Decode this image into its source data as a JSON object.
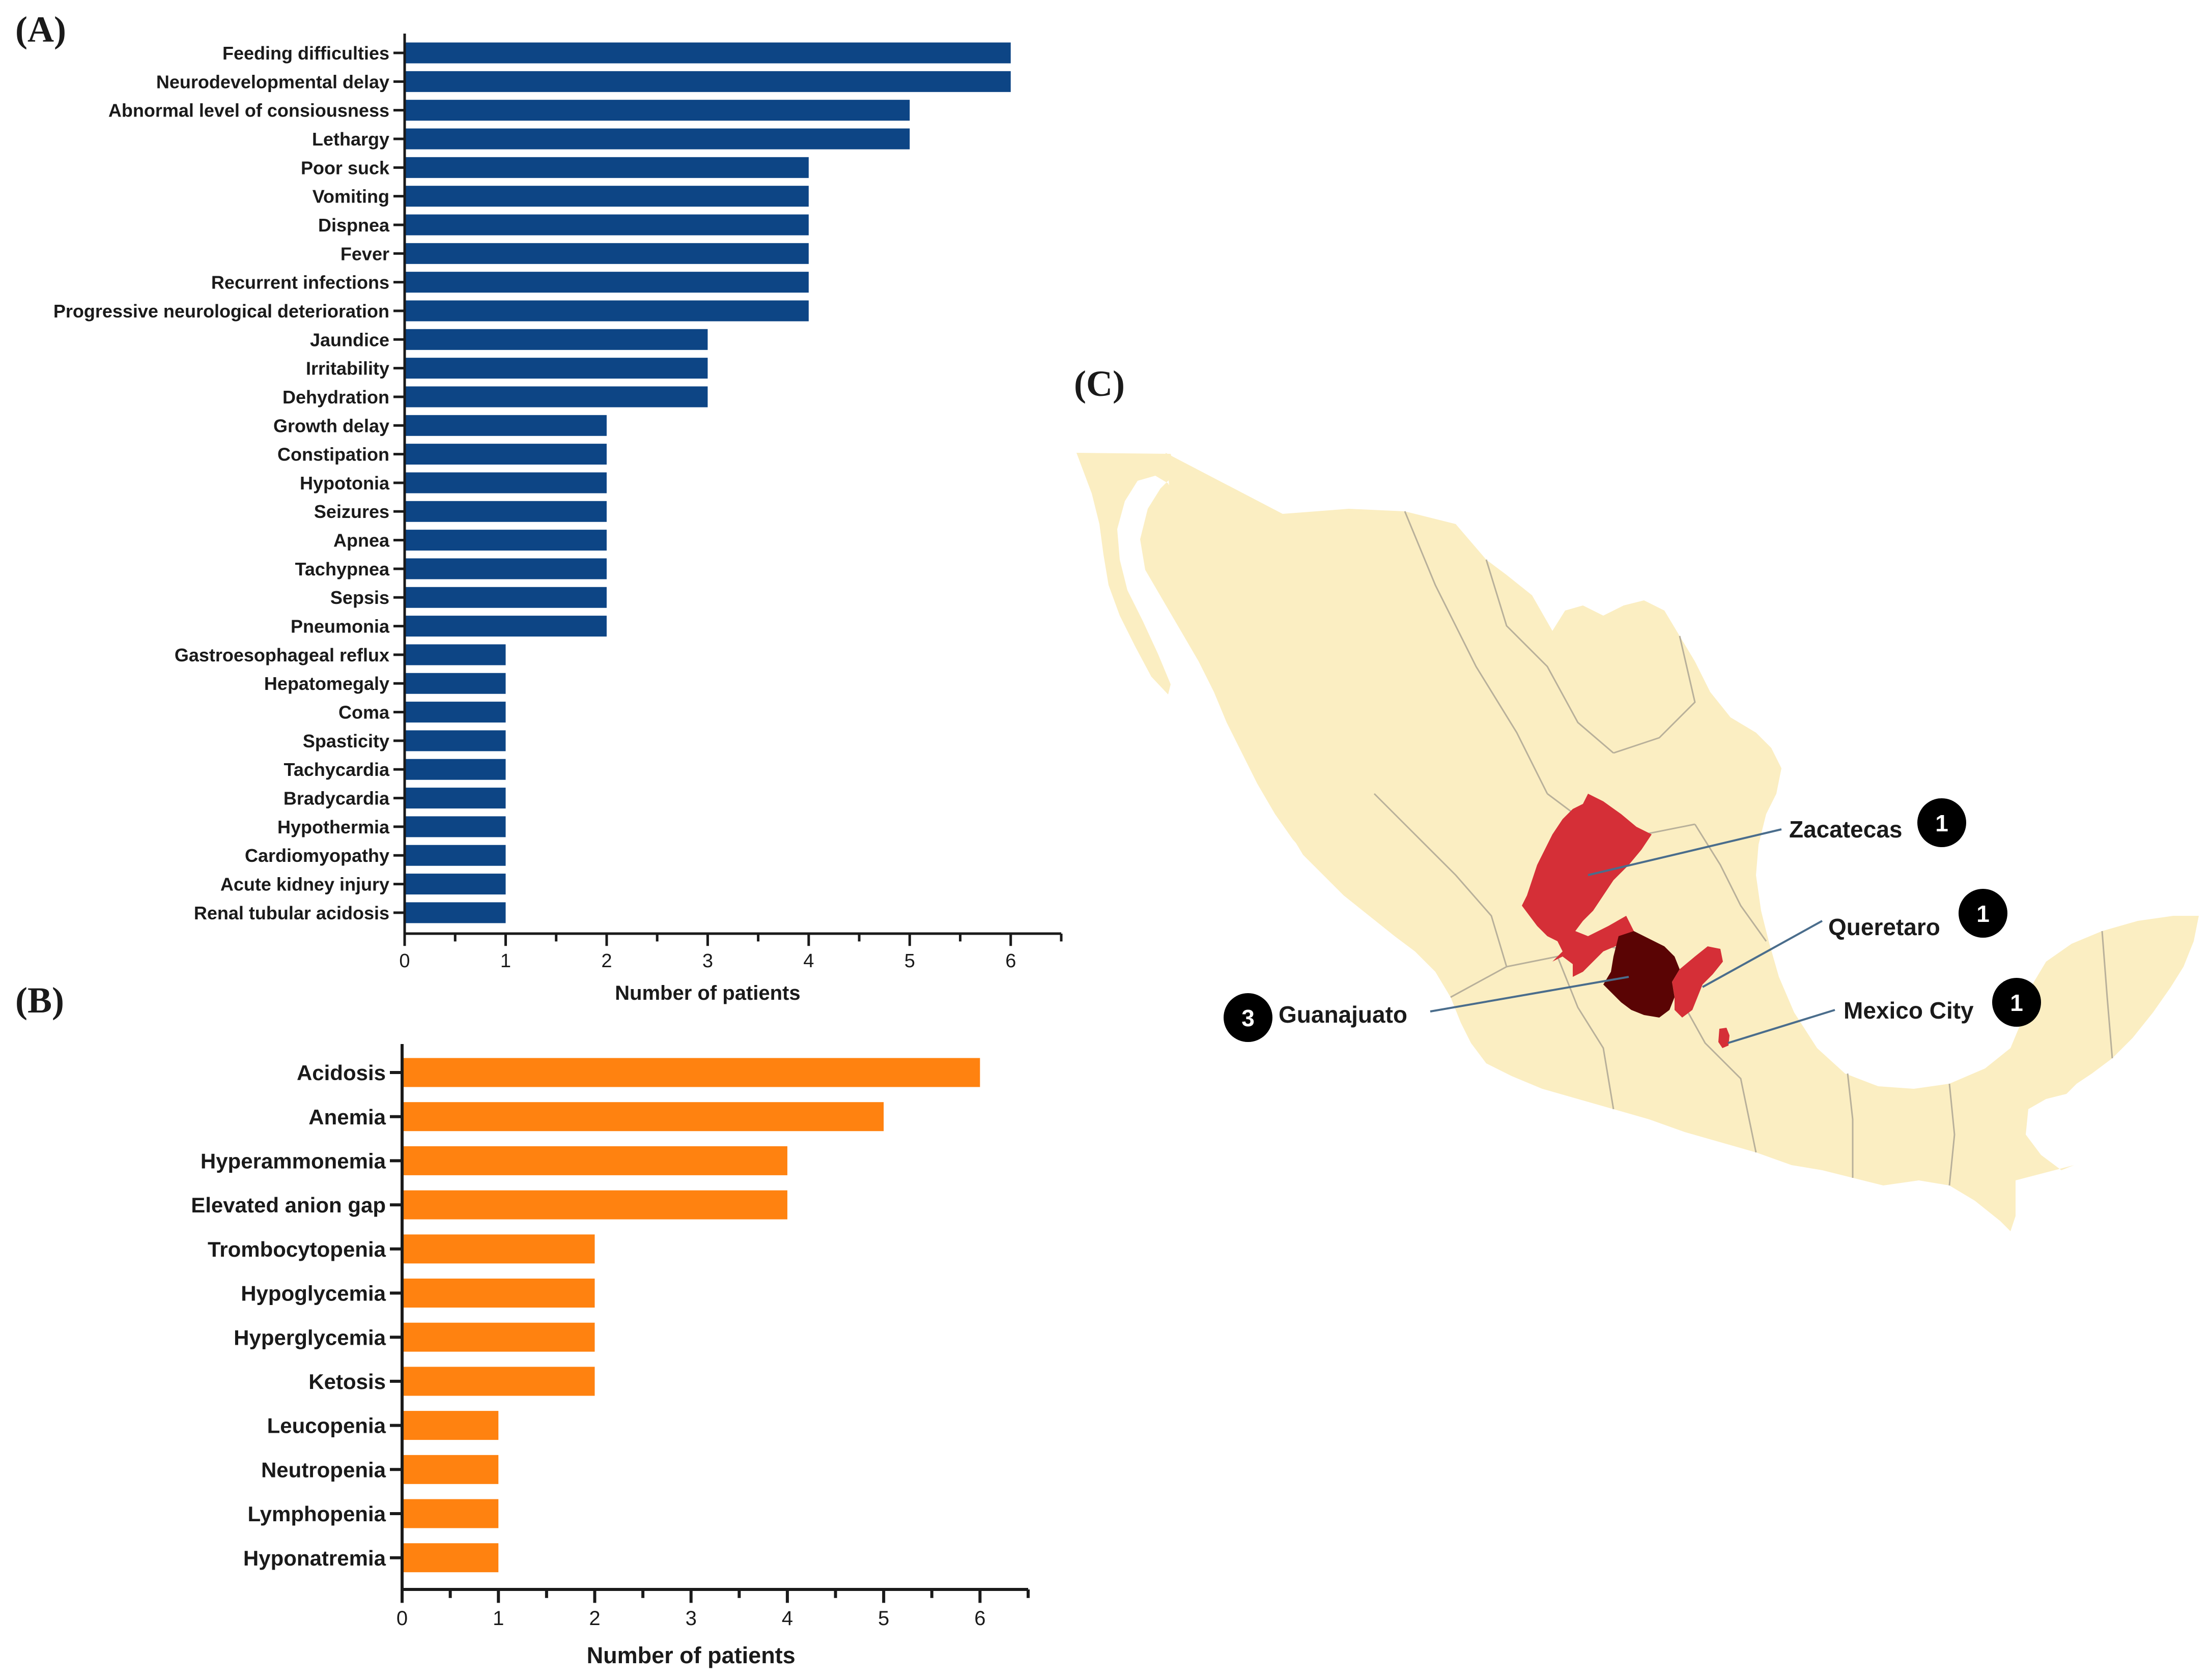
{
  "panels": {
    "a_letter": "(A)",
    "b_letter": "(B)",
    "c_letter": "(C)"
  },
  "chart_data": [
    {
      "type": "bar",
      "orientation": "horizontal",
      "panel": "A",
      "color": "#0d4585",
      "categories": [
        "Feeding difficulties",
        "Neurodevelopmental delay",
        "Abnormal level of consiousness",
        "Lethargy",
        "Poor suck",
        "Vomiting",
        "Dispnea",
        "Fever",
        "Recurrent infections",
        "Progressive neurological deterioration",
        "Jaundice",
        "Irritability",
        "Dehydration",
        "Growth delay",
        "Constipation",
        "Hypotonia",
        "Seizures",
        "Apnea",
        "Tachypnea",
        "Sepsis",
        "Pneumonia",
        "Gastroesophageal reflux",
        "Hepatomegaly",
        "Coma",
        "Spasticity",
        "Tachycardia",
        "Bradycardia",
        "Hypothermia",
        "Cardiomyopathy",
        "Acute kidney injury",
        "Renal tubular acidosis"
      ],
      "values": [
        6,
        6,
        5,
        5,
        4,
        4,
        4,
        4,
        4,
        4,
        3,
        3,
        3,
        2,
        2,
        2,
        2,
        2,
        2,
        2,
        2,
        1,
        1,
        1,
        1,
        1,
        1,
        1,
        1,
        1,
        1
      ],
      "xlabel": "Number of patients",
      "xticks": [
        "0",
        "1",
        "2",
        "3",
        "4",
        "5",
        "6"
      ],
      "xlim": [
        0,
        6.5
      ],
      "grid": false,
      "legend": "none"
    },
    {
      "type": "bar",
      "orientation": "horizontal",
      "panel": "B",
      "color": "#ff8210",
      "categories": [
        "Acidosis",
        "Anemia",
        "Hyperammonemia",
        "Elevated anion gap",
        "Trombocytopenia",
        "Hypoglycemia",
        "Hyperglycemia",
        "Ketosis",
        "Leucopenia",
        "Neutropenia",
        "Lymphopenia",
        "Hyponatremia"
      ],
      "values": [
        6,
        5,
        4,
        4,
        2,
        2,
        2,
        2,
        1,
        1,
        1,
        1
      ],
      "xlabel": "Number of patients",
      "xticks": [
        "0",
        "1",
        "2",
        "3",
        "4",
        "5",
        "6"
      ],
      "xlim": [
        0,
        6.5
      ],
      "grid": false,
      "legend": "none"
    }
  ],
  "map": {
    "land_color": "#fbeec2",
    "border_color": "#b8b09a",
    "marks": [
      {
        "state": "Zacatecas",
        "count": "1",
        "color": "#d52f37"
      },
      {
        "state": "Queretaro",
        "count": "1",
        "color": "#d52f37"
      },
      {
        "state": "Guanajuato",
        "count": "3",
        "color": "#5a0404"
      },
      {
        "state": "Mexico City",
        "count": "1",
        "color": "#d52f37"
      }
    ]
  }
}
